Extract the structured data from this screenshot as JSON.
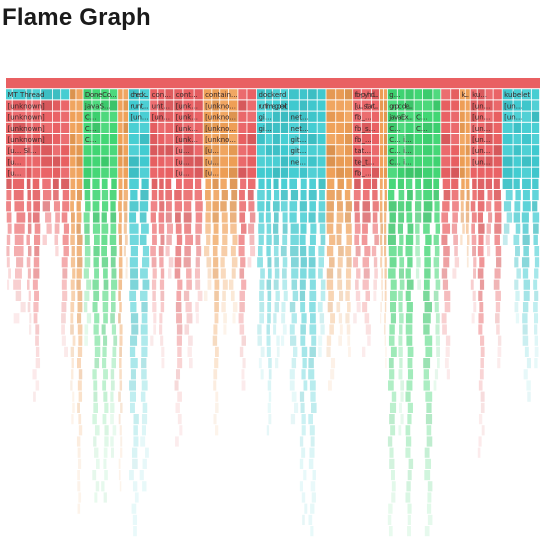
{
  "page": {
    "title": "Flame Graph"
  },
  "chart_data": {
    "type": "flame-graph",
    "title": "Flame Graph",
    "orientation": "icicle (root at top, stacks grow downward)",
    "palette": {
      "red": "#e8575a",
      "cyan": "#37c9cf",
      "green": "#35d36b",
      "orange": "#ee9a4d"
    },
    "root": {
      "label": "",
      "color": "red"
    },
    "columns": [
      {
        "from": 0.0,
        "to": 0.12,
        "color": "red",
        "depth": 26,
        "labels": [
          "MT Thread",
          "[unknown]",
          "[unknown]",
          "[unknown]",
          "[unknown]",
          "[u... Sl...",
          "[u...",
          "[u..."
        ],
        "top_color": "cyan"
      },
      {
        "from": 0.12,
        "to": 0.145,
        "color": "orange",
        "depth": 34,
        "labels": []
      },
      {
        "from": 0.145,
        "to": 0.21,
        "color": "green",
        "depth": 40,
        "labels": [
          "DoneCo...",
          "javaS...",
          "C...",
          "C...",
          "C..."
        ]
      },
      {
        "from": 0.21,
        "to": 0.23,
        "color": "orange",
        "depth": 36,
        "labels": []
      },
      {
        "from": 0.23,
        "to": 0.27,
        "color": "cyan",
        "depth": 38,
        "labels": [
          "check...",
          "runt...",
          "[un..."
        ]
      },
      {
        "from": 0.27,
        "to": 0.315,
        "color": "red",
        "depth": 30,
        "labels": [
          "con...",
          "unt...",
          "[un..."
        ]
      },
      {
        "from": 0.315,
        "to": 0.37,
        "color": "red",
        "depth": 33,
        "labels": [
          "cont...",
          "[unk...",
          "[unk...",
          "[unk...",
          "[unk...",
          "[u...",
          "[u...",
          "[u..."
        ]
      },
      {
        "from": 0.37,
        "to": 0.435,
        "color": "orange",
        "depth": 28,
        "labels": [
          "contain...",
          "[unkno...",
          "[unkno...",
          "[unkno...",
          "[unkno...",
          "[u...",
          "[u...",
          "[u..."
        ]
      },
      {
        "from": 0.435,
        "to": 0.47,
        "color": "red",
        "depth": 26,
        "labels": []
      },
      {
        "from": 0.47,
        "to": 0.53,
        "color": "cyan",
        "depth": 34,
        "labels": [
          "dockerd",
          "runtime.goexit",
          "gi...",
          "gi..."
        ]
      },
      {
        "from": 0.53,
        "to": 0.6,
        "color": "cyan",
        "depth": 40,
        "labels": [
          "",
          "",
          "net...",
          "net...",
          "git...",
          "git...",
          "ne..."
        ]
      },
      {
        "from": 0.6,
        "to": 0.65,
        "color": "orange",
        "depth": 32,
        "labels": []
      },
      {
        "from": 0.65,
        "to": 0.7,
        "color": "red",
        "depth": 30,
        "labels": [
          "fb-pyhd...",
          "[u... start...",
          "fb_...",
          "fb_s...",
          "fb_...",
          "tat...",
          "te_t...",
          "fb_..."
        ]
      },
      {
        "from": 0.7,
        "to": 0.715,
        "color": "orange",
        "depth": 24,
        "labels": []
      },
      {
        "from": 0.715,
        "to": 0.765,
        "color": "green",
        "depth": 42,
        "labels": [
          "g...",
          "grpc de...",
          "javaEx...",
          "C...",
          "C... i...",
          "C... i...",
          "C... i..."
        ]
      },
      {
        "from": 0.765,
        "to": 0.815,
        "color": "green",
        "depth": 40,
        "labels": [
          "",
          "",
          "C...",
          "C..."
        ]
      },
      {
        "from": 0.815,
        "to": 0.85,
        "color": "red",
        "depth": 28,
        "labels": []
      },
      {
        "from": 0.85,
        "to": 0.87,
        "color": "orange",
        "depth": 24,
        "labels": [
          "k..."
        ]
      },
      {
        "from": 0.87,
        "to": 0.93,
        "color": "red",
        "depth": 30,
        "labels": [
          "ku...",
          "[un...",
          "[un...",
          "[un...",
          "[un...",
          "[un...",
          "[un..."
        ]
      },
      {
        "from": 0.93,
        "to": 1.0,
        "color": "cyan",
        "depth": 26,
        "labels": [
          "kubelet",
          "[un...",
          "[un..."
        ]
      }
    ]
  }
}
